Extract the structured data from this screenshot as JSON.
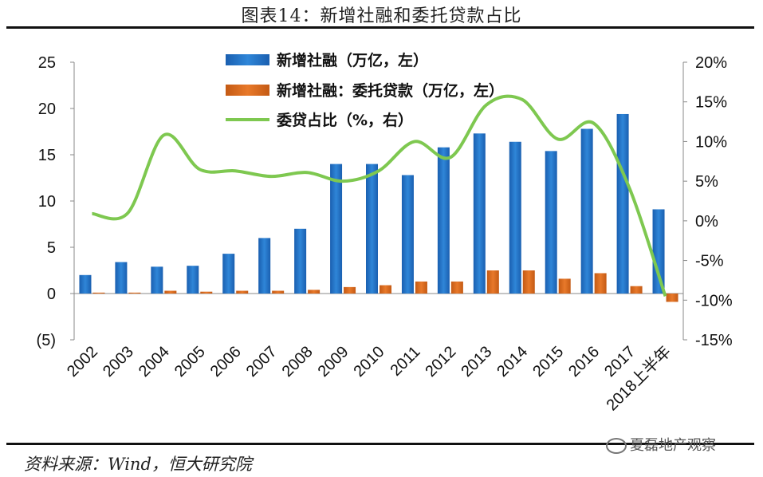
{
  "title": "图表14：新增社融和委托贷款占比",
  "source": "资料来源：Wind，恒大研究院",
  "watermark": "夏磊地产观察",
  "colors": {
    "bar_total": "#2f86d8",
    "bar_trust": "#e8792a",
    "line": "#7ec850",
    "negative_tick": "#cc0000"
  },
  "chart_data": {
    "type": "bar",
    "categories": [
      "2002",
      "2003",
      "2004",
      "2005",
      "2006",
      "2007",
      "2008",
      "2009",
      "2010",
      "2011",
      "2012",
      "2013",
      "2014",
      "2015",
      "2016",
      "2017",
      "2018上半年"
    ],
    "series": [
      {
        "name": "新增社融（万亿，左）",
        "axis": "left",
        "type": "bar",
        "values": [
          2.0,
          3.4,
          2.9,
          3.0,
          4.3,
          6.0,
          7.0,
          14.0,
          14.0,
          12.8,
          15.8,
          17.3,
          16.4,
          15.4,
          17.8,
          19.4,
          9.1
        ]
      },
      {
        "name": "新增社融：委托贷款（万亿，左）",
        "axis": "left",
        "type": "bar",
        "values": [
          0.1,
          0.1,
          0.3,
          0.2,
          0.3,
          0.3,
          0.4,
          0.7,
          0.9,
          1.3,
          1.3,
          2.5,
          2.5,
          1.6,
          2.2,
          0.8,
          -0.9
        ]
      },
      {
        "name": "委贷占比（%，右）",
        "axis": "right",
        "type": "line",
        "values": [
          0.9,
          1.0,
          10.8,
          6.5,
          6.3,
          5.6,
          6.1,
          5.0,
          6.3,
          10.0,
          8.0,
          14.6,
          15.3,
          10.3,
          12.3,
          4.1,
          -9.5
        ]
      }
    ],
    "left_axis": {
      "min": -5,
      "max": 25,
      "ticks": [
        "(5)",
        "0",
        "5",
        "10",
        "15",
        "20",
        "25"
      ],
      "tick_values": [
        -5,
        0,
        5,
        10,
        15,
        20,
        25
      ]
    },
    "right_axis": {
      "min": -15,
      "max": 20,
      "ticks": [
        "-15%",
        "-10%",
        "-5%",
        "0%",
        "5%",
        "10%",
        "15%",
        "20%"
      ],
      "tick_values": [
        -15,
        -10,
        -5,
        0,
        5,
        10,
        15,
        20
      ]
    },
    "legend": [
      {
        "label": "新增社融（万亿，左）",
        "kind": "bar-total"
      },
      {
        "label": "新增社融：委托贷款（万亿，左）",
        "kind": "bar-trust"
      },
      {
        "label": "委贷占比（%，右）",
        "kind": "line"
      }
    ],
    "legend_position": "top-left"
  }
}
